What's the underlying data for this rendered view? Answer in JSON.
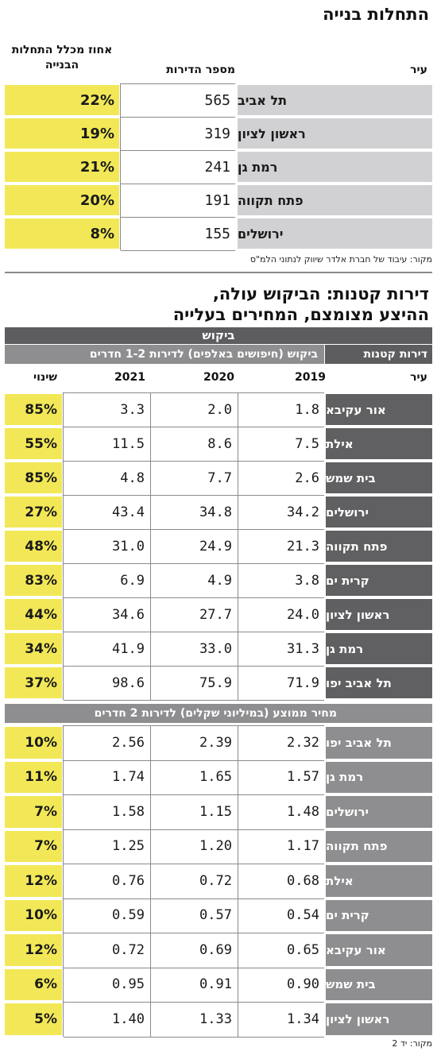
{
  "chart_data": [
    {
      "type": "table",
      "title": "התחלות בנייה",
      "columns": [
        "עיר",
        "מספר הדירות",
        "אחוז מכלל התחלות הבנייה"
      ],
      "rows": [
        {
          "city": "תל אביב",
          "count": "565",
          "pct": "22%"
        },
        {
          "city": "ראשון לציון",
          "count": "319",
          "pct": "19%"
        },
        {
          "city": "רמת גן",
          "count": "241",
          "pct": "21%"
        },
        {
          "city": "פתח תקווה",
          "count": "191",
          "pct": "20%"
        },
        {
          "city": "ירושלים",
          "count": "155",
          "pct": "8%"
        }
      ],
      "source": "מקור: עיבוד של חברת אלדר שיווק לנתוני הלמ\"ס"
    },
    {
      "type": "table",
      "title_line1": "דירות קטנות: הביקוש עולה,",
      "title_line2": "ההיצע מצומצם, המחירים בעלייה",
      "band": "ביקוש",
      "left_header": "דירות קטנות",
      "demand_header": "ביקוש (חיפושים באלפים) לדירות 1-2 חדרים",
      "col_city": "עיר",
      "years": [
        "2019",
        "2020",
        "2021"
      ],
      "col_change": "שינוי",
      "demand_rows": [
        {
          "city": "אור עקיבא",
          "y2019": "1.8",
          "y2020": "2.0",
          "y2021": "3.3",
          "change": "85%"
        },
        {
          "city": "אילת",
          "y2019": "7.5",
          "y2020": "8.6",
          "y2021": "11.5",
          "change": "55%"
        },
        {
          "city": "בית שמש",
          "y2019": "2.6",
          "y2020": "7.7",
          "y2021": "4.8",
          "change": "85%"
        },
        {
          "city": "ירושלים",
          "y2019": "34.2",
          "y2020": "34.8",
          "y2021": "43.4",
          "change": "27%"
        },
        {
          "city": "פתח תקווה",
          "y2019": "21.3",
          "y2020": "24.9",
          "y2021": "31.0",
          "change": "48%"
        },
        {
          "city": "קרית ים",
          "y2019": "3.8",
          "y2020": "4.9",
          "y2021": "6.9",
          "change": "83%"
        },
        {
          "city": "ראשון לציון",
          "y2019": "24.0",
          "y2020": "27.7",
          "y2021": "34.6",
          "change": "44%"
        },
        {
          "city": "רמת גן",
          "y2019": "31.3",
          "y2020": "33.0",
          "y2021": "41.9",
          "change": "34%"
        },
        {
          "city": "תל אביב יפו",
          "y2019": "71.9",
          "y2020": "75.9",
          "y2021": "98.6",
          "change": "37%"
        }
      ],
      "price_header": "מחיר ממוצע (במיליוני שקלים) לדירות 2 חדרים",
      "price_rows": [
        {
          "city": "תל אביב יפו",
          "y2019": "2.32",
          "y2020": "2.39",
          "y2021": "2.56",
          "change": "10%"
        },
        {
          "city": "רמת גן",
          "y2019": "1.57",
          "y2020": "1.65",
          "y2021": "1.74",
          "change": "11%"
        },
        {
          "city": "ירושלים",
          "y2019": "1.48",
          "y2020": "1.15",
          "y2021": "1.58",
          "change": "7%"
        },
        {
          "city": "פתח תקווה",
          "y2019": "1.17",
          "y2020": "1.20",
          "y2021": "1.25",
          "change": "7%"
        },
        {
          "city": "אילת",
          "y2019": "0.68",
          "y2020": "0.72",
          "y2021": "0.76",
          "change": "12%"
        },
        {
          "city": "קרית ים",
          "y2019": "0.54",
          "y2020": "0.57",
          "y2021": "0.59",
          "change": "10%"
        },
        {
          "city": "אור עקיבא",
          "y2019": "0.65",
          "y2020": "0.69",
          "y2021": "0.72",
          "change": "12%"
        },
        {
          "city": "בית שמש",
          "y2019": "0.90",
          "y2020": "0.91",
          "y2021": "0.95",
          "change": "6%"
        },
        {
          "city": "ראשון לציון",
          "y2019": "1.34",
          "y2020": "1.33",
          "y2021": "1.40",
          "change": "5%"
        }
      ],
      "source": "מקור: יד 2"
    }
  ]
}
